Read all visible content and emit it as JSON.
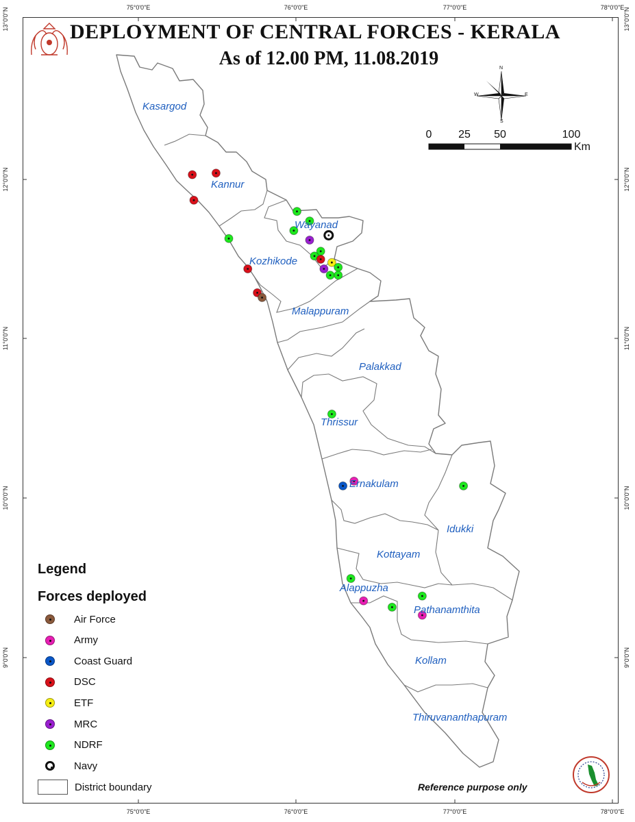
{
  "title": "DEPLOYMENT OF CENTRAL FORCES - KERALA",
  "subtitle": "As of 12.00 PM, 11.08.2019",
  "lon_ticks": [
    "75°0'0\"E",
    "76°0'0\"E",
    "77°0'0\"E",
    "78°0'0\"E"
  ],
  "lat_ticks": [
    "13°0'0\"N",
    "12°0'0\"N",
    "11°0'0\"N",
    "10°0'0\"N",
    "9°0'0\"N"
  ],
  "districts": [
    "Kasargod",
    "Kannur",
    "Wayanad",
    "Kozhikode",
    "Malappuram",
    "Palakkad",
    "Thrissur",
    "Ernakulam",
    "Idukki",
    "Kottayam",
    "Alappuzha",
    "Pathanamthita",
    "Kollam",
    "Thiruvananthapuram"
  ],
  "compass": {
    "n": "N",
    "s": "S",
    "e": "E",
    "w": "W"
  },
  "scale": {
    "labels": [
      "0",
      "25",
      "50",
      "100"
    ],
    "unit": "Km"
  },
  "legend": {
    "title": "Legend",
    "subtitle": "Forces deployed",
    "items": [
      {
        "label": "Air Force",
        "color": "#8B5A3C"
      },
      {
        "label": "Army",
        "color": "#E81FB4"
      },
      {
        "label": "Coast Guard",
        "color": "#0A57C8"
      },
      {
        "label": "DSC",
        "color": "#D9101A"
      },
      {
        "label": "ETF",
        "color": "#F5EE13"
      },
      {
        "label": "MRC",
        "color": "#9A1FD0"
      },
      {
        "label": "NDRF",
        "color": "#1EE81E"
      },
      {
        "label": "Navy",
        "color": "#111111"
      }
    ],
    "boundary_label": "District boundary"
  },
  "reference_note": "Reference purpose only",
  "deployments": [
    {
      "force": "DSC",
      "lon": 75.34,
      "lat": 12.03
    },
    {
      "force": "DSC",
      "lon": 75.49,
      "lat": 12.04
    },
    {
      "force": "DSC",
      "lon": 75.35,
      "lat": 11.87
    },
    {
      "force": "NDRF",
      "lon": 75.57,
      "lat": 11.63
    },
    {
      "force": "DSC",
      "lon": 75.69,
      "lat": 11.44
    },
    {
      "force": "DSC",
      "lon": 75.75,
      "lat": 11.29
    },
    {
      "force": "Air Force",
      "lon": 75.78,
      "lat": 11.26
    },
    {
      "force": "NDRF",
      "lon": 76.0,
      "lat": 11.8
    },
    {
      "force": "NDRF",
      "lon": 76.08,
      "lat": 11.74
    },
    {
      "force": "NDRF",
      "lon": 75.98,
      "lat": 11.68
    },
    {
      "force": "MRC",
      "lon": 76.08,
      "lat": 11.62
    },
    {
      "force": "Navy",
      "lon": 76.2,
      "lat": 11.65
    },
    {
      "force": "NDRF",
      "lon": 76.15,
      "lat": 11.55
    },
    {
      "force": "NDRF",
      "lon": 76.11,
      "lat": 11.52
    },
    {
      "force": "DSC",
      "lon": 76.15,
      "lat": 11.5
    },
    {
      "force": "ETF",
      "lon": 76.22,
      "lat": 11.48
    },
    {
      "force": "NDRF",
      "lon": 76.26,
      "lat": 11.45
    },
    {
      "force": "MRC",
      "lon": 76.17,
      "lat": 11.44
    },
    {
      "force": "NDRF",
      "lon": 76.21,
      "lat": 11.4
    },
    {
      "force": "NDRF",
      "lon": 76.26,
      "lat": 11.4
    },
    {
      "force": "NDRF",
      "lon": 76.22,
      "lat": 10.53
    },
    {
      "force": "Army",
      "lon": 76.36,
      "lat": 10.11
    },
    {
      "force": "Coast Guard",
      "lon": 76.29,
      "lat": 10.08
    },
    {
      "force": "NDRF",
      "lon": 77.05,
      "lat": 10.08
    },
    {
      "force": "NDRF",
      "lon": 76.34,
      "lat": 9.5
    },
    {
      "force": "Army",
      "lon": 76.42,
      "lat": 9.36
    },
    {
      "force": "NDRF",
      "lon": 76.6,
      "lat": 9.32
    },
    {
      "force": "NDRF",
      "lon": 76.79,
      "lat": 9.39
    },
    {
      "force": "Army",
      "lon": 76.79,
      "lat": 9.27
    }
  ]
}
